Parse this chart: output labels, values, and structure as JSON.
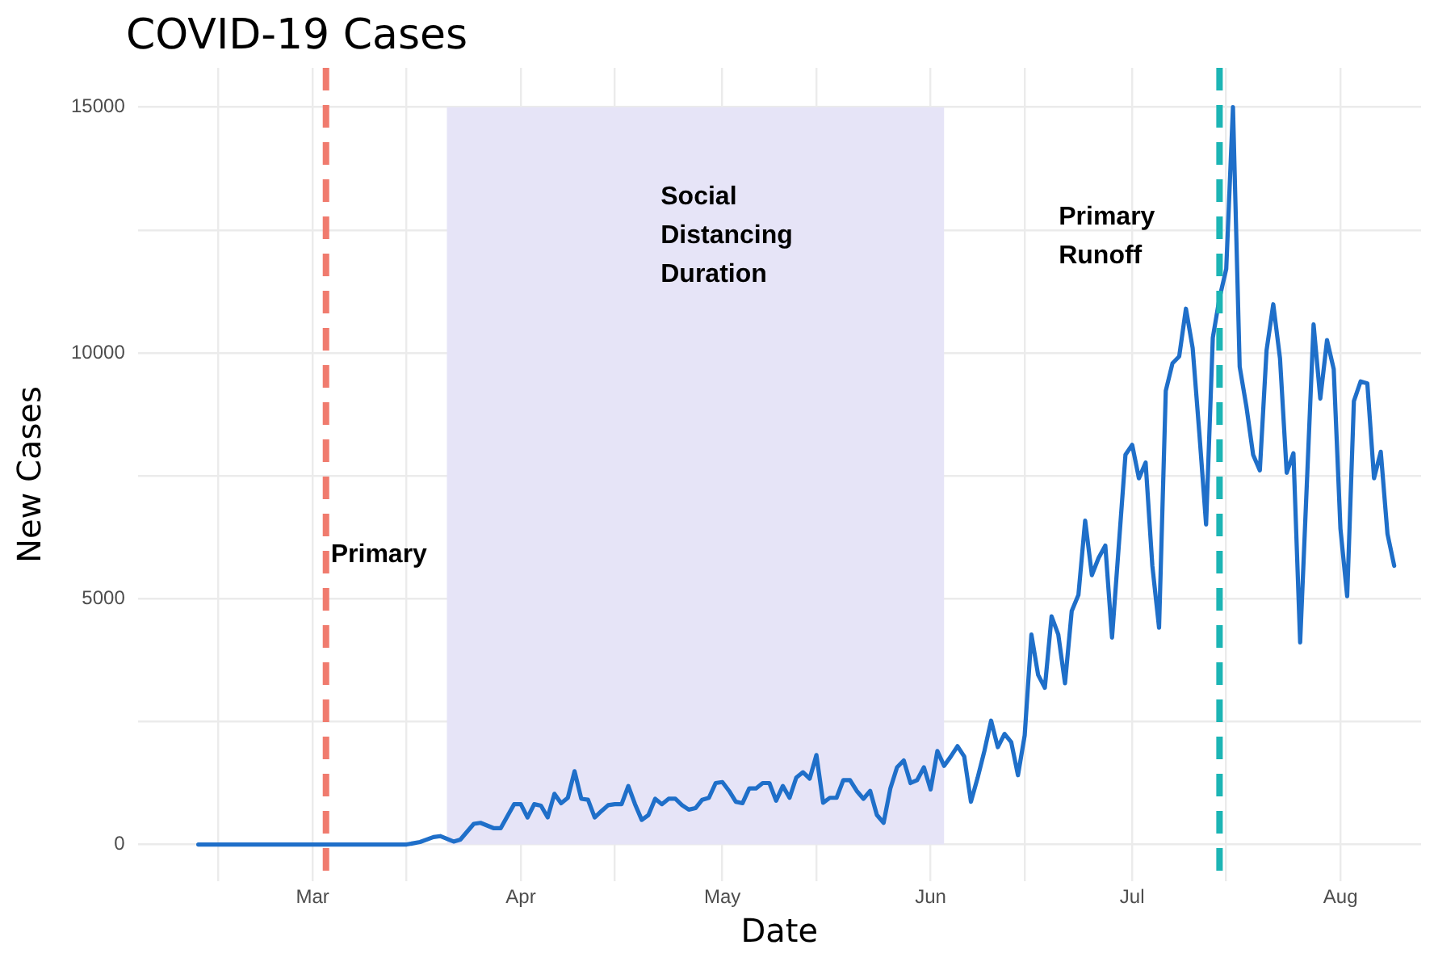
{
  "chart_data": {
    "type": "line",
    "title": "COVID-19 Cases",
    "xlabel": "Date",
    "ylabel": "New Cases",
    "x": [
      "--02-12",
      "--02-20",
      "--03-01",
      "--03-10",
      "--03-15",
      "--03-17",
      "--03-19",
      "--03-20",
      "--03-22",
      "--03-23",
      "--03-25",
      "--03-26",
      "--03-28",
      "--03-29",
      "--03-31",
      "--04-01",
      "--04-02",
      "--04-03",
      "--04-04",
      "--04-05",
      "--04-06",
      "--04-07",
      "--04-08",
      "--04-09",
      "--04-10",
      "--04-11",
      "--04-12",
      "--04-13",
      "--04-14",
      "--04-15",
      "--04-16",
      "--04-17",
      "--04-18",
      "--04-19",
      "--04-20",
      "--04-21",
      "--04-22",
      "--04-23",
      "--04-24",
      "--04-25",
      "--04-26",
      "--04-27",
      "--04-28",
      "--04-29",
      "--04-30",
      "--05-01",
      "--05-02",
      "--05-03",
      "--05-04",
      "--05-05",
      "--05-06",
      "--05-07",
      "--05-08",
      "--05-09",
      "--05-10",
      "--05-11",
      "--05-12",
      "--05-13",
      "--05-14",
      "--05-15",
      "--05-16",
      "--05-17",
      "--05-18",
      "--05-19",
      "--05-20",
      "--05-21",
      "--05-22",
      "--05-23",
      "--05-24",
      "--05-25",
      "--05-26",
      "--05-27",
      "--05-28",
      "--05-29",
      "--05-30",
      "--05-31",
      "--06-01",
      "--06-02",
      "--06-03",
      "--06-04",
      "--06-05",
      "--06-06",
      "--06-07",
      "--06-08",
      "--06-09",
      "--06-10",
      "--06-11",
      "--06-12",
      "--06-13",
      "--06-14",
      "--06-15",
      "--06-16",
      "--06-17",
      "--06-18",
      "--06-19",
      "--06-20",
      "--06-21",
      "--06-22",
      "--06-23",
      "--06-24",
      "--06-25",
      "--06-26",
      "--06-27",
      "--06-28",
      "--06-30",
      "--07-01",
      "--07-02",
      "--07-03",
      "--07-04",
      "--07-05",
      "--07-06",
      "--07-07",
      "--07-08",
      "--07-09",
      "--07-10",
      "--07-11",
      "--07-12",
      "--07-13",
      "--07-14",
      "--07-15",
      "--07-16",
      "--07-17",
      "--07-18",
      "--07-19",
      "--07-20",
      "--07-21",
      "--07-22",
      "--07-23",
      "--07-24",
      "--07-25",
      "--07-26",
      "--07-28",
      "--07-29",
      "--07-30",
      "--07-31",
      "--08-01",
      "--08-02",
      "--08-03",
      "--08-04",
      "--08-05",
      "--08-06",
      "--08-07",
      "--08-08",
      "--08-09"
    ],
    "series": [
      {
        "color": "#1f6fc9",
        "values": [
          0,
          0,
          0,
          0,
          0,
          50,
          150,
          170,
          60,
          100,
          420,
          440,
          330,
          330,
          820,
          820,
          550,
          820,
          790,
          550,
          1030,
          840,
          950,
          1490,
          930,
          910,
          550,
          680,
          800,
          820,
          820,
          1190,
          820,
          500,
          600,
          930,
          820,
          930,
          930,
          800,
          710,
          740,
          910,
          950,
          1250,
          1270,
          1090,
          870,
          840,
          1140,
          1140,
          1250,
          1250,
          890,
          1190,
          950,
          1360,
          1470,
          1340,
          1820,
          850,
          950,
          950,
          1310,
          1310,
          1090,
          930,
          1090,
          600,
          440,
          1140,
          1570,
          1710,
          1250,
          1310,
          1570,
          1120,
          1900,
          1600,
          1790,
          2000,
          1790,
          870,
          1360,
          1900,
          2520,
          1980,
          2250,
          2080,
          1410,
          2220,
          4270,
          3450,
          3190,
          4640,
          4270,
          3280,
          4750,
          5080,
          6590,
          5480,
          5830,
          6080,
          4210,
          7930,
          8130,
          7450,
          7770,
          5670,
          4410,
          9230,
          9790,
          9930,
          10900,
          10100,
          8360,
          6510,
          10310,
          11120,
          11710,
          15000,
          9720,
          8910,
          7930,
          7610,
          10050,
          10990,
          9890,
          7560,
          7960,
          4110,
          10580,
          9070,
          10260,
          9670,
          6420,
          5050,
          9020,
          9420,
          9380,
          7450,
          7990,
          6320,
          5670
        ]
      }
    ],
    "xlim": [
      "--02-03",
      "--08-13"
    ],
    "xticks": [
      {
        "value": "--02-15",
        "label": null
      },
      {
        "value": "--03-01",
        "label": "Mar"
      },
      {
        "value": "--03-15",
        "label": null
      },
      {
        "value": "--04-01",
        "label": "Apr"
      },
      {
        "value": "--04-15",
        "label": null
      },
      {
        "value": "--05-01",
        "label": "May"
      },
      {
        "value": "--05-15",
        "label": null
      },
      {
        "value": "--06-01",
        "label": "Jun"
      },
      {
        "value": "--06-15",
        "label": null
      },
      {
        "value": "--07-01",
        "label": "Jul"
      },
      {
        "value": "--07-15",
        "label": null
      },
      {
        "value": "--08-01",
        "label": "Aug"
      }
    ],
    "ylim": [
      -750,
      15800
    ],
    "yticks": [
      0,
      {
        "value": 2500,
        "label": null
      },
      5000,
      {
        "value": 7500,
        "label": null
      },
      10000,
      {
        "value": 12500,
        "label": null
      },
      15000
    ],
    "grid": true,
    "legend": false,
    "marker": "none",
    "line_style": "solid",
    "ref_lines": [
      {
        "axis": "x",
        "value": "--03-03",
        "label": "Primary",
        "color": "#f07b6e",
        "line_style": "dashed"
      },
      {
        "axis": "x",
        "value": "--07-14",
        "label": "Primary Runoff",
        "color": "#1cb5b5",
        "line_style": "dashed"
      }
    ],
    "bands": [
      {
        "axis": "x",
        "from": "--03-21",
        "to": "--06-03",
        "label": "Social Distancing Duration",
        "color": "#e6e4f7"
      }
    ]
  }
}
